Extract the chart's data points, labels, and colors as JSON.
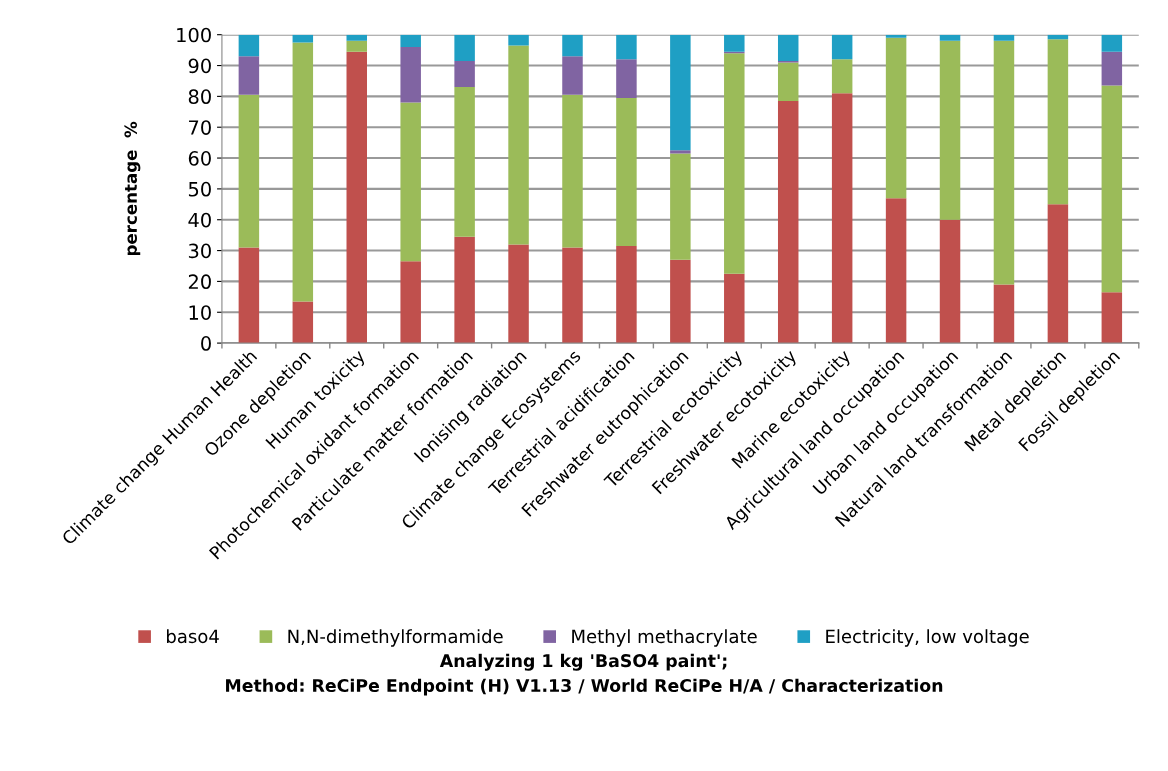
{
  "chart_data": {
    "type": "bar",
    "stacked": true,
    "title": "Analyzing 1 kg 'BaSO4 paint';\nMethod: ReCiPe Endpoint (H) V1.13 / World ReCiPe H/A / Characterization",
    "ylabel": "percentage  %",
    "categories": [
      "Climate change Human Health",
      "Ozone depletion",
      "Human toxicity",
      "Photochemical oxidant formation",
      "Particulate matter formation",
      "Ionising radiation",
      "Climate change Ecosystems",
      "Terrestrial acidification",
      "Freshwater eutrophication",
      "Terrestrial ecotoxicity",
      "Freshwater ecotoxicity",
      "Marine ecotoxicity",
      "Agricultural land occupation",
      "Urban land occupation",
      "Natural land transformation",
      "Metal depletion",
      "Fossil depletion"
    ],
    "series": [
      {
        "name": "baso4",
        "color": "#c0504d",
        "values": [
          31,
          13.5,
          94.5,
          26.5,
          34.5,
          32,
          31,
          31.5,
          27,
          22.5,
          78.5,
          81,
          47,
          40,
          19,
          45,
          16.5
        ]
      },
      {
        "name": "N,N-dimethylformamide",
        "color": "#9bbb59",
        "values": [
          49.5,
          84,
          3.5,
          51.5,
          48.5,
          64.5,
          49.5,
          48,
          34.5,
          71.5,
          12.5,
          11,
          52,
          58,
          79,
          53.5,
          67
        ]
      },
      {
        "name": "Methyl methacrylate",
        "color": "#8064a2",
        "values": [
          12.5,
          0,
          0,
          18,
          8.5,
          0,
          12.5,
          12.5,
          1,
          0.5,
          0.5,
          0,
          0,
          0,
          0,
          0,
          11
        ]
      },
      {
        "name": "Electricity, low voltage",
        "color": "#1f9fc4",
        "values": [
          7,
          2.5,
          2,
          4,
          8.5,
          3.5,
          7,
          8,
          37.5,
          5.5,
          8.5,
          8,
          1,
          2,
          2,
          1.5,
          5.5
        ]
      }
    ],
    "ylim": [
      0,
      100
    ],
    "yticks": [
      0,
      10,
      20,
      30,
      40,
      50,
      60,
      70,
      80,
      90,
      100
    ],
    "grid": "y",
    "legend": "bottom"
  }
}
